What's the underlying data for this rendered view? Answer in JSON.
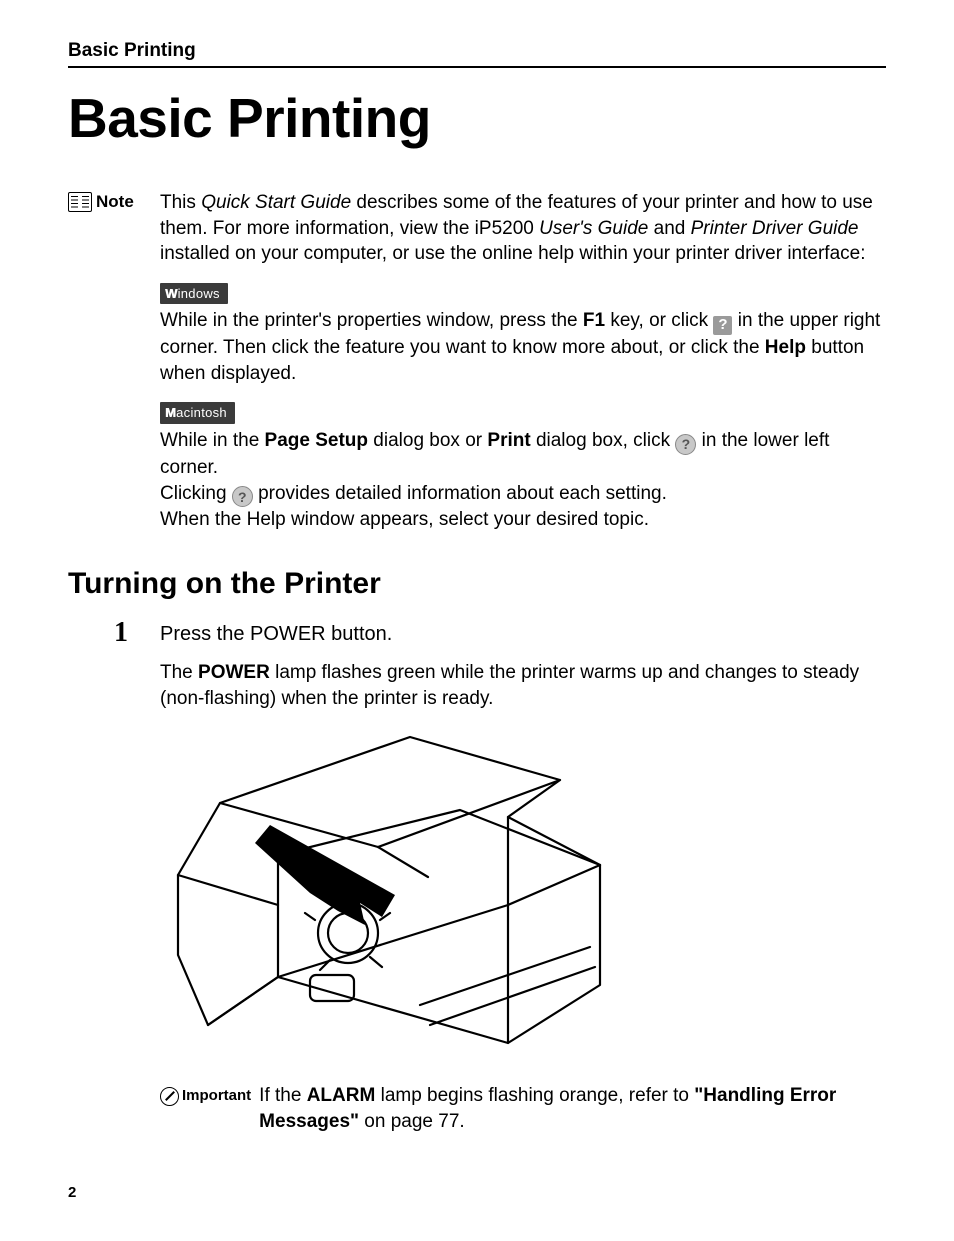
{
  "running_header": "Basic Printing",
  "title": "Basic Printing",
  "note": {
    "label": "Note",
    "intro_html": "This <i>Quick Start Guide</i> describes some of the features of your printer and how to use them. For more information, view the iP5200 <i>User's Guide</i> and <i>Printer Driver Guide</i> installed on your computer, or use the online help within your printer driver interface:",
    "windows_tag": "Windows",
    "windows_text_before": "While in the printer's properties window, press the ",
    "windows_f1": "F1",
    "windows_text_mid": " key, or click ",
    "windows_text_after": " in the upper right corner. Then click the feature you want to know more about, or click the ",
    "windows_help": "Help",
    "windows_text_end": " button when displayed.",
    "mac_tag": "Macintosh",
    "mac_line1_a": "While in the ",
    "mac_pagesetup": "Page Setup",
    "mac_line1_b": " dialog box or ",
    "mac_print": "Print",
    "mac_line1_c": " dialog box, click ",
    "mac_line1_d": " in the lower left corner.",
    "mac_line2_a": "Clicking ",
    "mac_line2_b": " provides detailed information about each setting.",
    "mac_line3": "When the Help window appears, select your desired topic."
  },
  "section_heading": "Turning on the Printer",
  "step": {
    "number": "1",
    "title": "Press the POWER button.",
    "body_a": "The ",
    "body_power": "POWER",
    "body_b": " lamp flashes green while the printer warms up and changes to steady (non-flashing) when the printer is ready."
  },
  "important": {
    "label": "Important",
    "text_a": "If the ",
    "text_alarm": "ALARM",
    "text_b": " lamp begins flashing orange, refer to ",
    "text_link": "\"Handling Error Messages\"",
    "text_c": " on page 77."
  },
  "page_number": "2",
  "colors": {
    "text": "#000000",
    "bg": "#ffffff",
    "tag_bg": "#3b3b3b",
    "help_sq_bg": "#9a9a9a",
    "help_circ_bg": "#c8c8c8"
  }
}
